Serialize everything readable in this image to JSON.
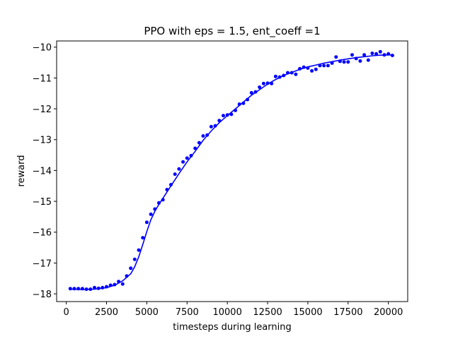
{
  "chart_data": {
    "type": "scatter",
    "title": "PPO with eps = 1.5, ent_coeff =1",
    "xlabel": "timesteps during learning",
    "ylabel": "reward",
    "xlim": [
      -600,
      21200
    ],
    "ylim": [
      -18.25,
      -9.8
    ],
    "x_ticks": [
      0,
      2500,
      5000,
      7500,
      10000,
      12500,
      15000,
      17500,
      20000
    ],
    "x_tick_labels": [
      "0",
      "2500",
      "5000",
      "7500",
      "10000",
      "12500",
      "15000",
      "17500",
      "20000"
    ],
    "y_ticks": [
      -18,
      -17,
      -16,
      -15,
      -14,
      -13,
      -12,
      -11,
      -10
    ],
    "y_tick_labels": [
      "−18",
      "−17",
      "−16",
      "−15",
      "−14",
      "−13",
      "−12",
      "−11",
      "−10"
    ],
    "grid": false,
    "series_color": "#0000ff",
    "series": [
      {
        "kind": "points",
        "x": [
          250,
          500,
          750,
          1000,
          1250,
          1500,
          1750,
          2000,
          2250,
          2500,
          2750,
          3000,
          3250,
          3500,
          3750,
          4000,
          4250,
          4500,
          4750,
          5000,
          5250,
          5500,
          5750,
          6000,
          6250,
          6500,
          6750,
          7000,
          7250,
          7500,
          7750,
          8000,
          8250,
          8500,
          8750,
          9000,
          9250,
          9500,
          9750,
          10000,
          10250,
          10500,
          10750,
          11000,
          11250,
          11500,
          11750,
          12000,
          12250,
          12500,
          12750,
          13000,
          13250,
          13500,
          13750,
          14000,
          14250,
          14500,
          14750,
          15000,
          15250,
          15500,
          15750,
          16000,
          16250,
          16500,
          16750,
          17000,
          17250,
          17500,
          17750,
          18000,
          18250,
          18500,
          18750,
          19000,
          19250,
          19500,
          19750,
          20000,
          20250
        ],
        "y": [
          -17.83,
          -17.83,
          -17.83,
          -17.83,
          -17.85,
          -17.85,
          -17.8,
          -17.82,
          -17.8,
          -17.77,
          -17.72,
          -17.7,
          -17.6,
          -17.68,
          -17.42,
          -17.17,
          -16.88,
          -16.58,
          -16.18,
          -15.68,
          -15.42,
          -15.25,
          -15.05,
          -14.95,
          -14.62,
          -14.46,
          -14.12,
          -13.95,
          -13.72,
          -13.6,
          -13.52,
          -13.28,
          -13.1,
          -12.88,
          -12.85,
          -12.58,
          -12.55,
          -12.38,
          -12.22,
          -12.2,
          -12.18,
          -12.05,
          -11.85,
          -11.82,
          -11.7,
          -11.48,
          -11.45,
          -11.3,
          -11.18,
          -11.17,
          -11.18,
          -10.95,
          -10.97,
          -10.92,
          -10.83,
          -10.83,
          -10.88,
          -10.7,
          -10.65,
          -10.68,
          -10.77,
          -10.72,
          -10.6,
          -10.6,
          -10.6,
          -10.52,
          -10.32,
          -10.46,
          -10.48,
          -10.48,
          -10.25,
          -10.37,
          -10.45,
          -10.25,
          -10.42,
          -10.2,
          -10.22,
          -10.15,
          -10.25,
          -10.22,
          -10.27
        ]
      },
      {
        "kind": "line",
        "x": [
          250,
          1000,
          1750,
          2500,
          3000,
          3500,
          4000,
          4250,
          4500,
          4750,
          5000,
          5250,
          5500,
          5750,
          6000,
          6500,
          7000,
          7500,
          8000,
          8500,
          9000,
          9500,
          10000,
          10500,
          11000,
          11500,
          12000,
          12500,
          13000,
          13500,
          14000,
          14500,
          15000,
          15500,
          16000,
          16500,
          17000,
          17500,
          18000,
          18500,
          19000,
          19500,
          20250
        ],
        "y": [
          -17.85,
          -17.86,
          -17.85,
          -17.8,
          -17.72,
          -17.58,
          -17.35,
          -17.12,
          -16.8,
          -16.4,
          -15.98,
          -15.6,
          -15.32,
          -15.1,
          -14.9,
          -14.5,
          -14.1,
          -13.72,
          -13.38,
          -13.02,
          -12.72,
          -12.45,
          -12.22,
          -12.0,
          -11.78,
          -11.56,
          -11.38,
          -11.2,
          -11.05,
          -10.92,
          -10.82,
          -10.72,
          -10.64,
          -10.58,
          -10.52,
          -10.47,
          -10.42,
          -10.38,
          -10.34,
          -10.31,
          -10.28,
          -10.26,
          -10.25
        ]
      }
    ]
  }
}
